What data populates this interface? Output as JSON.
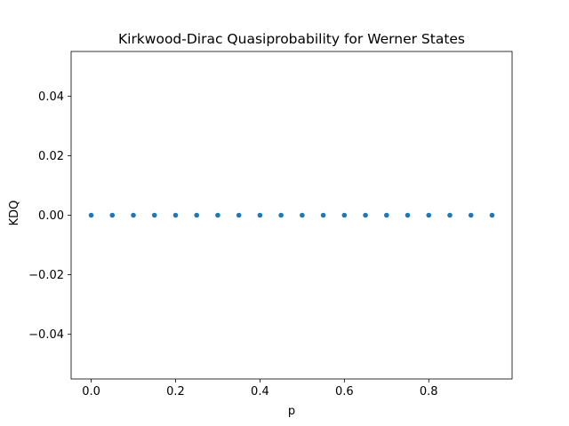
{
  "chart_data": {
    "type": "scatter",
    "title": "Kirkwood-Dirac Quasiprobability for Werner States",
    "xlabel": "p",
    "ylabel": "KDQ",
    "xlim": [
      -0.0475,
      0.9975
    ],
    "ylim": [
      -0.055,
      0.055
    ],
    "xticks": [
      0.0,
      0.2,
      0.4,
      0.6,
      0.8
    ],
    "xtick_labels": [
      "0.0",
      "0.2",
      "0.4",
      "0.6",
      "0.8"
    ],
    "yticks": [
      -0.04,
      -0.02,
      0.0,
      0.02,
      0.04
    ],
    "ytick_labels": [
      "−0.04",
      "−0.02",
      "0.00",
      "0.02",
      "0.04"
    ],
    "grid": false,
    "series": [
      {
        "color": "#1f77b4",
        "x": [
          0.0,
          0.05,
          0.1,
          0.15,
          0.2,
          0.25,
          0.3,
          0.35,
          0.4,
          0.45,
          0.5,
          0.55,
          0.6,
          0.65,
          0.7,
          0.75,
          0.8,
          0.85,
          0.9,
          0.95
        ],
        "y": [
          0,
          0,
          0,
          0,
          0,
          0,
          0,
          0,
          0,
          0,
          0,
          0,
          0,
          0,
          0,
          0,
          0,
          0,
          0,
          0
        ]
      }
    ]
  }
}
